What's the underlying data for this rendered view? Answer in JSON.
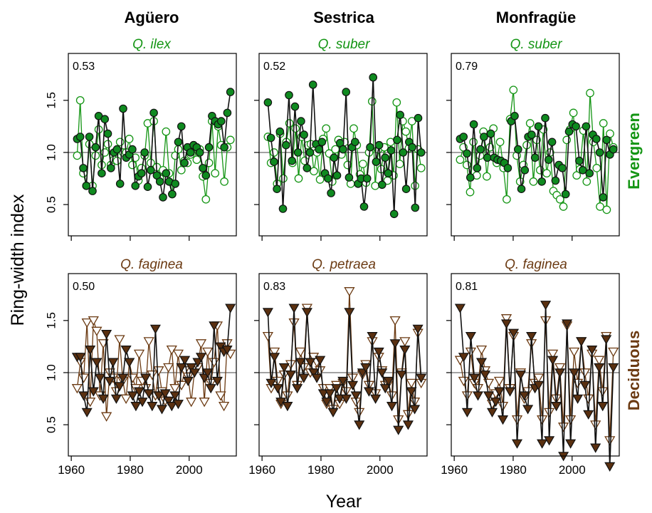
{
  "colors": {
    "evergreen": "#149514",
    "deciduous": "#6b3a12",
    "deciduous_fill": "#5a3010",
    "evergreen_fill": "#0f8a20"
  },
  "column_titles": [
    "Agüero",
    "Sestrica",
    "Monfragüe"
  ],
  "row_labels": [
    "Evergreen",
    "Deciduous"
  ],
  "axis_labels": {
    "y": "Ring-width index",
    "x": "Year"
  },
  "chart_data": {
    "type": "line",
    "x_range": [
      1959,
      2016
    ],
    "ylim": [
      0.2,
      1.95
    ],
    "x_ticks": [
      1960,
      1980,
      2000
    ],
    "y_ticks": [
      0.5,
      1.0,
      1.5
    ],
    "y_tick_labels": [
      "0.5",
      "1.0",
      "1.5"
    ],
    "reference_line": 1.0,
    "panels": [
      {
        "column": "Agüero",
        "group": "Evergreen",
        "species": "Q. ilex",
        "corr": "0.53",
        "marker": "circle",
        "series": [
          {
            "values": [
              1.13,
              1.15,
              0.85,
              0.68,
              1.15,
              0.63,
              1.05,
              1.35,
              0.8,
              1.32,
              1.18,
              0.85,
              1.0,
              1.03,
              0.7,
              1.42,
              0.95,
              0.98,
              1.03,
              0.68,
              0.77,
              0.8,
              1.0,
              0.67,
              0.83,
              1.38,
              0.78,
              0.72,
              0.57,
              0.8,
              0.72,
              0.6,
              0.7,
              1.1,
              1.25,
              0.9,
              1.05,
              1.0,
              1.07,
              1.05,
              1.0,
              0.85,
              0.78,
              1.05,
              1.35,
              1.3,
              1.27,
              1.3,
              1.05,
              1.38,
              1.58
            ]
          },
          {
            "values": [
              0.97,
              1.5,
              0.8,
              0.68,
              1.08,
              0.68,
              0.97,
              1.22,
              0.88,
              1.0,
              1.08,
              0.88,
              0.93,
              0.92,
              1.1,
              1.0,
              1.0,
              1.13,
              0.88,
              0.95,
              0.73,
              0.85,
              0.97,
              1.28,
              0.9,
              1.3,
              0.86,
              0.75,
              0.83,
              1.2,
              0.8,
              0.6,
              0.97,
              1.03,
              0.83,
              0.92,
              0.9,
              0.98,
              1.07,
              0.93,
              1.03,
              0.77,
              0.55,
              0.9,
              1.3,
              0.8,
              1.25,
              1.07,
              0.72,
              1.05,
              1.12
            ]
          }
        ]
      },
      {
        "column": "Sestrica",
        "group": "Evergreen",
        "species": "Q. suber",
        "corr": "0.52",
        "marker": "circle",
        "series": [
          {
            "values": [
              1.48,
              1.14,
              0.91,
              0.65,
              1.2,
              0.46,
              1.07,
              1.55,
              0.92,
              1.44,
              1.0,
              1.3,
              1.17,
              0.85,
              1.0,
              1.65,
              1.08,
              1.03,
              1.1,
              0.8,
              0.75,
              0.61,
              0.95,
              0.78,
              1.09,
              1.03,
              1.58,
              0.76,
              1.05,
              1.1,
              0.7,
              0.75,
              0.48,
              0.75,
              1.05,
              1.72,
              0.91,
              1.07,
              0.69,
              0.95,
              0.8,
              1.02,
              0.41,
              1.12,
              1.36,
              1.0,
              0.65,
              1.1,
              1.05,
              0.47,
              1.33,
              1.0
            ]
          },
          {
            "values": [
              1.15,
              0.9,
              1.0,
              0.7,
              1.18,
              0.75,
              1.1,
              1.28,
              0.9,
              1.23,
              0.75,
              1.15,
              0.92,
              1.07,
              1.08,
              0.82,
              1.0,
              0.74,
              1.13,
              1.23,
              0.99,
              0.72,
              1.03,
              1.12,
              0.98,
              1.1,
              0.88,
              0.7,
              1.23,
              1.07,
              0.79,
              0.89,
              0.71,
              1.0,
              1.49,
              0.68,
              1.03,
              0.84,
              1.05,
              0.73,
              1.1,
              0.78,
              1.48,
              0.89,
              1.3,
              1.2,
              1.04,
              1.3,
              0.68,
              1.03,
              0.85
            ]
          }
        ]
      },
      {
        "column": "Monfragüe",
        "group": "Evergreen",
        "species": "Q. suber",
        "corr": "0.79",
        "marker": "circle",
        "series": [
          {
            "values": [
              1.13,
              1.15,
              0.99,
              0.76,
              1.27,
              0.85,
              1.03,
              1.15,
              0.95,
              1.18,
              0.95,
              0.93,
              0.92,
              0.9,
              0.85,
              1.3,
              1.35,
              1.03,
              0.65,
              0.83,
              1.15,
              1.17,
              0.95,
              1.25,
              0.72,
              1.33,
              0.93,
              1.1,
              0.73,
              0.88,
              0.85,
              0.6,
              1.2,
              1.27,
              1.25,
              0.92,
              0.83,
              1.25,
              0.8,
              1.17,
              1.13,
              1.0,
              0.57,
              1.12,
              0.98,
              1.03
            ]
          },
          {
            "values": [
              0.93,
              1.05,
              0.88,
              0.62,
              1.1,
              0.78,
              0.97,
              1.2,
              0.77,
              1.05,
              1.23,
              0.9,
              1.1,
              0.85,
              0.55,
              1.32,
              1.6,
              0.97,
              0.72,
              0.88,
              1.07,
              1.28,
              0.72,
              1.12,
              0.83,
              1.22,
              0.8,
              1.0,
              0.63,
              0.59,
              0.55,
              0.48,
              1.12,
              1.22,
              1.38,
              0.78,
              0.84,
              1.21,
              0.72,
              1.57,
              1.1,
              0.85,
              0.48,
              1.28,
              0.45,
              1.18,
              1.05
            ]
          }
        ]
      },
      {
        "column": "Agüero",
        "group": "Deciduous",
        "species": "Q. faginea",
        "corr": "0.50",
        "marker": "triangle",
        "series": [
          {
            "values": [
              1.15,
              1.15,
              0.78,
              0.62,
              1.22,
              0.82,
              1.1,
              0.95,
              0.75,
              1.37,
              0.92,
              1.1,
              0.75,
              0.87,
              0.95,
              1.22,
              1.1,
              0.78,
              0.68,
              0.82,
              0.72,
              0.95,
              0.8,
              0.68,
              1.42,
              0.78,
              0.65,
              0.8,
              0.73,
              0.68,
              0.78,
              0.7,
              1.05,
              1.12,
              0.92,
              1.05,
              1.0,
              1.1,
              1.15,
              0.95,
              1.0,
              0.85,
              1.45,
              0.92,
              1.25,
              1.2,
              1.22,
              1.62
            ]
          },
          {
            "values": [
              0.85,
              1.1,
              0.95,
              1.48,
              0.72,
              1.5,
              1.4,
              0.78,
              1.28,
              0.58,
              1.0,
              0.95,
              0.82,
              1.32,
              0.92,
              0.75,
              1.1,
              0.95,
              0.85,
              1.18,
              0.92,
              0.85,
              1.3,
              0.98,
              0.78,
              1.02,
              0.82,
              0.73,
              1.05,
              1.22,
              0.85,
              1.18,
              0.88,
              1.02,
              0.96,
              0.72,
              1.02,
              1.05,
              1.28,
              0.72,
              1.2,
              0.9,
              1.1,
              1.45,
              0.78,
              0.68,
              1.28,
              1.18
            ]
          }
        ]
      },
      {
        "column": "Sestrica",
        "group": "Deciduous",
        "species": "Q. petraea",
        "corr": "0.83",
        "marker": "triangle",
        "series": [
          {
            "values": [
              1.58,
              0.9,
              1.15,
              0.85,
              0.72,
              1.05,
              0.68,
              0.98,
              1.62,
              0.85,
              1.1,
              0.95,
              1.58,
              1.1,
              1.0,
              0.95,
              1.12,
              0.8,
              0.72,
              0.8,
              0.62,
              0.85,
              0.75,
              0.92,
              0.75,
              1.58,
              0.88,
              0.78,
              0.5,
              1.0,
              1.05,
              0.82,
              1.35,
              0.75,
              1.2,
              1.0,
              0.85,
              0.92,
              0.68,
              1.28,
              0.45,
              0.98,
              1.22,
              0.5,
              0.82,
              0.65,
              1.42,
              0.95
            ]
          },
          {
            "values": [
              1.35,
              0.85,
              1.2,
              0.92,
              0.7,
              0.98,
              0.78,
              1.08,
              1.48,
              0.88,
              1.2,
              1.05,
              1.62,
              1.0,
              1.15,
              1.1,
              1.02,
              0.85,
              0.7,
              0.85,
              0.65,
              0.88,
              0.7,
              0.9,
              0.82,
              1.78,
              0.95,
              0.72,
              0.62,
              0.98,
              1.08,
              0.88,
              1.3,
              0.8,
              1.15,
              1.02,
              0.88,
              0.9,
              0.78,
              1.5,
              0.55,
              1.0,
              1.3,
              0.6,
              0.9,
              0.72,
              1.38,
              0.9
            ]
          }
        ]
      },
      {
        "column": "Monfragüe",
        "group": "Deciduous",
        "species": "Q. faginea",
        "corr": "0.81",
        "marker": "triangle",
        "series": [
          {
            "values": [
              1.62,
              1.15,
              0.62,
              1.35,
              0.95,
              0.78,
              1.1,
              0.98,
              0.78,
              0.62,
              0.72,
              0.82,
              0.55,
              1.47,
              0.82,
              1.38,
              0.32,
              0.98,
              0.78,
              0.65,
              1.35,
              0.85,
              0.88,
              0.32,
              1.65,
              0.35,
              1.12,
              0.68,
              1.0,
              0.2,
              1.47,
              0.32,
              1.0,
              0.75,
              1.3,
              0.88,
              0.6,
              1.22,
              0.28,
              1.05,
              0.68,
              1.32,
              0.1,
              1.05
            ]
          },
          {
            "values": [
              1.12,
              0.92,
              0.78,
              1.2,
              0.9,
              0.85,
              1.22,
              1.02,
              0.9,
              0.7,
              0.8,
              0.92,
              0.68,
              1.52,
              0.85,
              1.35,
              0.55,
              1.0,
              0.75,
              0.82,
              1.28,
              0.9,
              0.95,
              0.55,
              1.5,
              0.62,
              1.18,
              0.75,
              1.05,
              0.48,
              1.45,
              0.55,
              1.2,
              0.9,
              1.3,
              1.0,
              0.75,
              1.18,
              0.5,
              1.12,
              0.82,
              1.35,
              0.35,
              1.2
            ]
          }
        ]
      }
    ]
  }
}
